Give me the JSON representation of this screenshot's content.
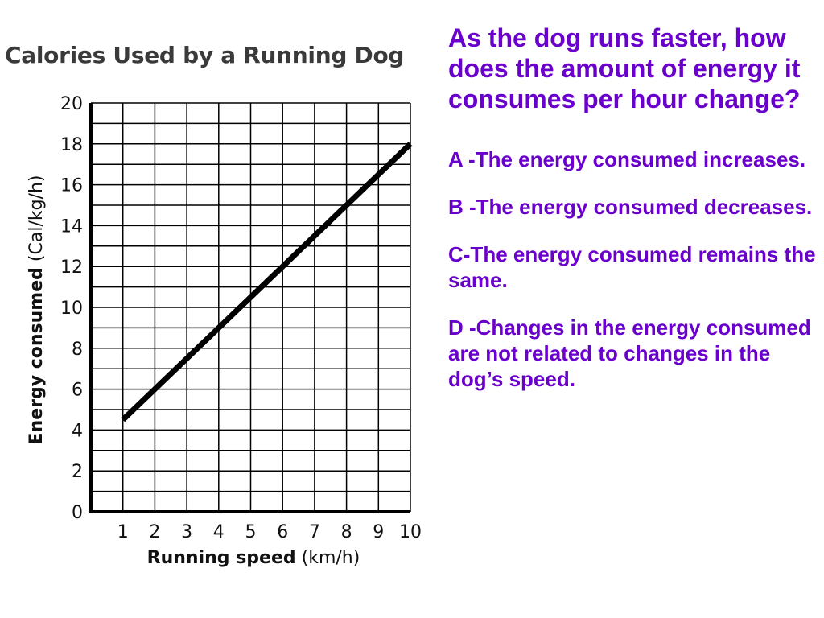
{
  "question": {
    "text": "As the dog runs faster, how does the amount of energy it consumes per hour change?"
  },
  "options": [
    {
      "label": "A -The energy consumed increases."
    },
    {
      "label": "B -The energy consumed decreases."
    },
    {
      "label": "C-The energy consumed remains the same."
    },
    {
      "label": "D -Changes in the energy consumed are not related to changes in the dog’s speed."
    }
  ],
  "chart_data": {
    "type": "line",
    "title": "Calories Used by a Running Dog",
    "xlabel_bold": "Running speed",
    "xlabel_unit": "(km/h)",
    "ylabel_bold": "Energy consumed",
    "ylabel_unit": "(Cal/kg/h)",
    "x_ticks": [
      1,
      2,
      3,
      4,
      5,
      6,
      7,
      8,
      9,
      10
    ],
    "y_ticks": [
      0,
      2,
      4,
      6,
      8,
      10,
      12,
      14,
      16,
      18,
      20
    ],
    "xlim": [
      0,
      10
    ],
    "ylim": [
      0,
      20
    ],
    "grid": true,
    "grid_minor_y": 1,
    "grid_minor_x": 1,
    "series": [
      {
        "x": [
          1,
          10
        ],
        "y": [
          4.5,
          18
        ]
      }
    ],
    "colors": {
      "line": "#000000",
      "grid": "#000000"
    }
  }
}
